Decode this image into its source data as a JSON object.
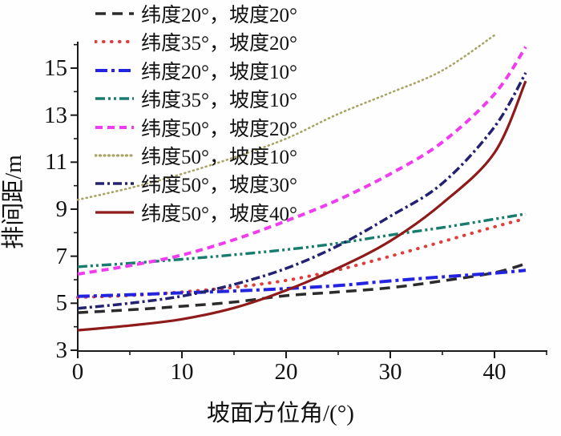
{
  "chart_data": {
    "type": "line",
    "title": "",
    "xlabel": "坡面方位角/(°)",
    "ylabel": "排间距/m",
    "xlim": [
      0,
      45
    ],
    "ylim": [
      3,
      16.5
    ],
    "x_ticks": [
      0,
      10,
      20,
      30,
      40
    ],
    "x_minor_ticks": [
      5,
      15,
      25,
      35,
      45
    ],
    "y_ticks": [
      3,
      5,
      7,
      9,
      11,
      13,
      15
    ],
    "y_minor_ticks": [
      4,
      6,
      8,
      10,
      12,
      14,
      16
    ],
    "grid": false,
    "legend_position": "upper-left-inside",
    "axis_color": "#1a1a1a",
    "series": [
      {
        "name": "纬度20°，坡度20°",
        "color": "#2b2b2b",
        "dash": "13 8",
        "width": 3.5,
        "linecap": "butt",
        "x": [
          0,
          5,
          10,
          15,
          20,
          25,
          30,
          35,
          40,
          43
        ],
        "y": [
          4.6,
          4.72,
          4.87,
          5.05,
          5.32,
          5.48,
          5.66,
          5.95,
          6.3,
          6.68
        ]
      },
      {
        "name": "纬度35°，坡度20°",
        "color": "#e23b3b",
        "dash": "0.5 9.5",
        "width": 4,
        "linecap": "round",
        "x": [
          0,
          5,
          10,
          15,
          20,
          25,
          30,
          35,
          40,
          43
        ],
        "y": [
          5.25,
          5.33,
          5.48,
          5.68,
          5.97,
          6.42,
          7.0,
          7.62,
          8.25,
          8.6
        ]
      },
      {
        "name": "纬度20°，坡度10°",
        "color": "#2424e0",
        "dash": "15 5 4 5",
        "width": 4,
        "linecap": "butt",
        "x": [
          0,
          5,
          10,
          15,
          20,
          25,
          30,
          35,
          40,
          43
        ],
        "y": [
          5.29,
          5.36,
          5.44,
          5.52,
          5.62,
          5.75,
          5.95,
          6.12,
          6.28,
          6.4
        ]
      },
      {
        "name": "纬度35°，坡度10°",
        "color": "#177c6e",
        "dash": "12 4 3 4 3 4",
        "width": 3.4,
        "linecap": "butt",
        "x": [
          0,
          5,
          10,
          15,
          20,
          25,
          30,
          35,
          40,
          43
        ],
        "y": [
          6.55,
          6.7,
          6.87,
          7.06,
          7.28,
          7.55,
          7.9,
          8.22,
          8.58,
          8.8
        ]
      },
      {
        "name": "纬度50°，坡度20°",
        "color": "#ef3cef",
        "dash": "9 6",
        "width": 4,
        "linecap": "butt",
        "x": [
          0,
          5,
          10,
          15,
          20,
          25,
          30,
          35,
          40,
          43
        ],
        "y": [
          6.24,
          6.6,
          7.05,
          7.7,
          8.5,
          9.4,
          10.5,
          11.85,
          13.9,
          15.9
        ]
      },
      {
        "name": "纬度50°，坡度10°",
        "color": "#a8a464",
        "dash": "1 4.5",
        "width": 2.6,
        "linecap": "round",
        "x": [
          0,
          5,
          10,
          15,
          20,
          25,
          30,
          35,
          40
        ],
        "y": [
          9.4,
          9.9,
          10.5,
          11.2,
          12.0,
          13.05,
          13.95,
          14.9,
          16.4
        ]
      },
      {
        "name": "纬度50°，坡度30°",
        "color": "#232270",
        "dash": "11 4 3 4",
        "width": 3.5,
        "linecap": "butt",
        "x": [
          0,
          5,
          10,
          15,
          20,
          25,
          30,
          35,
          40,
          43
        ],
        "y": [
          4.78,
          5.0,
          5.3,
          5.8,
          6.48,
          7.45,
          8.7,
          10.1,
          12.5,
          14.8
        ]
      },
      {
        "name": "纬度50°，坡度40°",
        "color": "#8e1a1a",
        "dash": "",
        "width": 3.2,
        "linecap": "butt",
        "x": [
          0,
          5,
          10,
          15,
          20,
          25,
          30,
          35,
          40,
          43
        ],
        "y": [
          3.85,
          4.05,
          4.32,
          4.8,
          5.55,
          6.5,
          7.65,
          9.25,
          11.4,
          14.45
        ]
      }
    ]
  }
}
